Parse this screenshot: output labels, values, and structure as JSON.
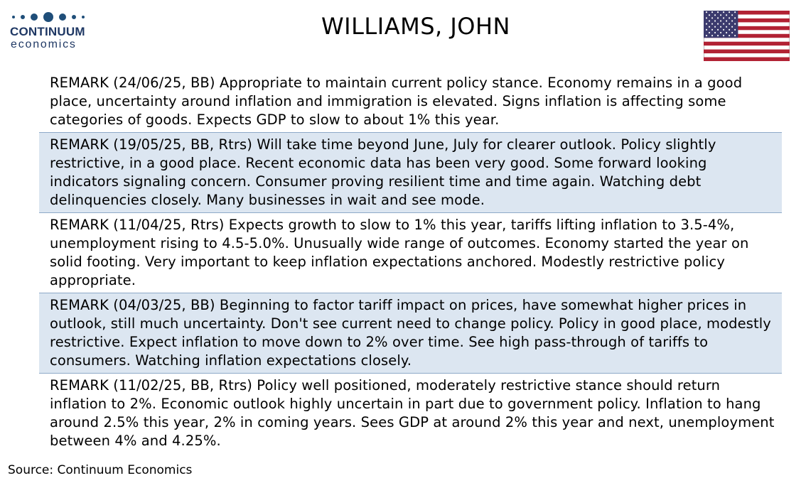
{
  "logo": {
    "name": "CONTINUUM",
    "sub": "economics"
  },
  "title": "WILLIAMS, JOHN",
  "flag": {
    "icon": "us-flag-icon",
    "colors": {
      "red": "#b22234",
      "white": "#ffffff",
      "blue": "#3c3b6e"
    }
  },
  "remarks": [
    {
      "text": "REMARK (24/06/25, BB) Appropriate to maintain current policy stance. Economy remains in a good place, uncertainty around inflation and immigration is elevated. Signs inflation is affecting some categories of goods. Expects GDP to slow to about 1% this year.",
      "shaded": false
    },
    {
      "text": "REMARK (19/05/25, BB, Rtrs) Will take time beyond June, July for clearer outlook. Policy slightly restrictive, in a good place. Recent economic data has been very good.  Some forward looking indicators signaling concern. Consumer proving resilient time and time again. Watching debt delinquencies closely. Many businesses in wait and see mode.",
      "shaded": true
    },
    {
      "text": "REMARK (11/04/25, Rtrs) Expects growth to slow to 1% this year, tariffs lifting inflation to 3.5-4%, unemployment rising to 4.5-5.0%. Unusually wide  range of outcomes. Economy started the year on solid footing. Very important to keep inflation expectations anchored. Modestly restrictive policy appropriate.",
      "shaded": false
    },
    {
      "text": "REMARK (04/03/25, BB) Beginning to factor tariff impact on prices, have somewhat higher prices in outlook, still much uncertainty. Don't see current need to change policy. Policy in good place, modestly restrictive. Expect inflation to move down to 2% over time. See high pass-through of tariffs to consumers. Watching inflation expectations closely.",
      "shaded": true
    },
    {
      "text": "REMARK (11/02/25, BB, Rtrs) Policy well positioned, moderately restrictive stance should return inflation to 2%. Economic outlook highly uncertain in part due to government policy. Inflation to hang around 2.5% this year, 2% in coming years. Sees GDP at around 2% this year and next, unemployment between 4% and 4.25%.",
      "shaded": false
    }
  ],
  "source": "Source: Continuum Economics"
}
